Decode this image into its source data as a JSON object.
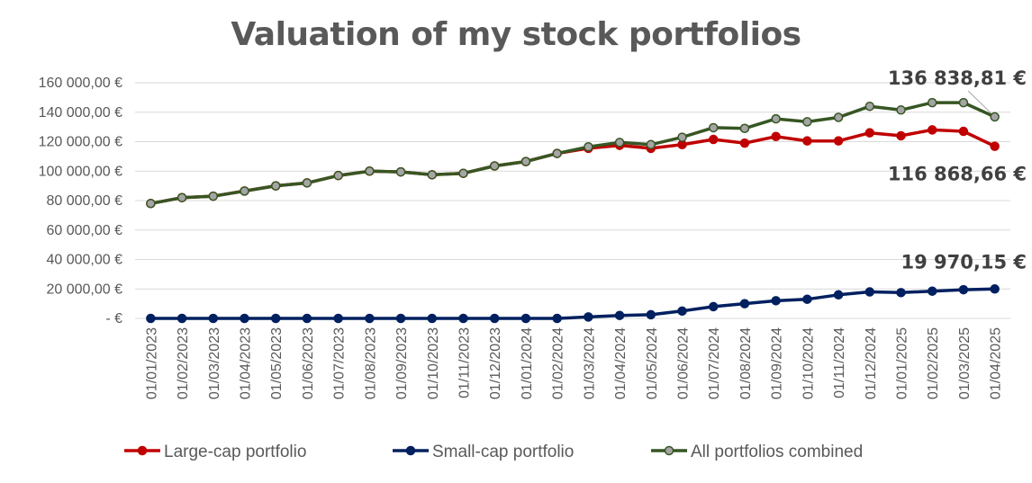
{
  "chart_data": {
    "type": "line",
    "title": "Valuation of my stock portfolios",
    "xlabel": "",
    "ylabel": "",
    "ylim": [
      0,
      160000
    ],
    "y_ticks": [
      "-  €",
      "20 000,00 €",
      "40 000,00 €",
      "60 000,00 €",
      "80 000,00 €",
      "100 000,00 €",
      "120 000,00 €",
      "140 000,00 €",
      "160 000,00 €"
    ],
    "x": [
      "01/01/2023",
      "01/02/2023",
      "01/03/2023",
      "01/04/2023",
      "01/05/2023",
      "01/06/2023",
      "01/07/2023",
      "01/08/2023",
      "01/09/2023",
      "01/10/2023",
      "01/11/2023",
      "01/12/2023",
      "01/01/2024",
      "01/02/2024",
      "01/03/2024",
      "01/04/2024",
      "01/05/2024",
      "01/06/2024",
      "01/07/2024",
      "01/08/2024",
      "01/09/2024",
      "01/10/2024",
      "01/11/2024",
      "01/12/2024",
      "01/01/2025",
      "01/02/2025",
      "01/03/2025",
      "01/04/2025"
    ],
    "series": [
      {
        "name": "Large-cap portfolio",
        "color": "#C00000",
        "values": [
          78000,
          82000,
          83000,
          86500,
          90000,
          92000,
          97000,
          100000,
          99500,
          97500,
          98500,
          103500,
          106500,
          112000,
          115500,
          117500,
          115500,
          118000,
          121500,
          119000,
          123500,
          120500,
          120500,
          126000,
          124000,
          128000,
          127000,
          116868.66
        ]
      },
      {
        "name": "Small-cap portfolio",
        "color": "#002060",
        "values": [
          0,
          0,
          0,
          0,
          0,
          0,
          0,
          0,
          0,
          0,
          0,
          0,
          0,
          0,
          1000,
          2000,
          2500,
          5000,
          8000,
          10000,
          12000,
          13000,
          16000,
          18000,
          17500,
          18500,
          19500,
          19970.15
        ]
      },
      {
        "name": "All portfolios combined",
        "color": "#375623",
        "marker": "#A5A5A5",
        "values": [
          78000,
          82000,
          83000,
          86500,
          90000,
          92000,
          97000,
          100000,
          99500,
          97500,
          98500,
          103500,
          106500,
          112000,
          116500,
          119500,
          118000,
          123000,
          129500,
          129000,
          135500,
          133500,
          136500,
          144000,
          141500,
          146500,
          146500,
          136838.81
        ]
      }
    ],
    "data_labels": {
      "combined_last": "136 838,81 €",
      "large_last": "116 868,66 €",
      "small_last": "19 970,15 €"
    },
    "legend_position": "bottom",
    "grid": true
  }
}
